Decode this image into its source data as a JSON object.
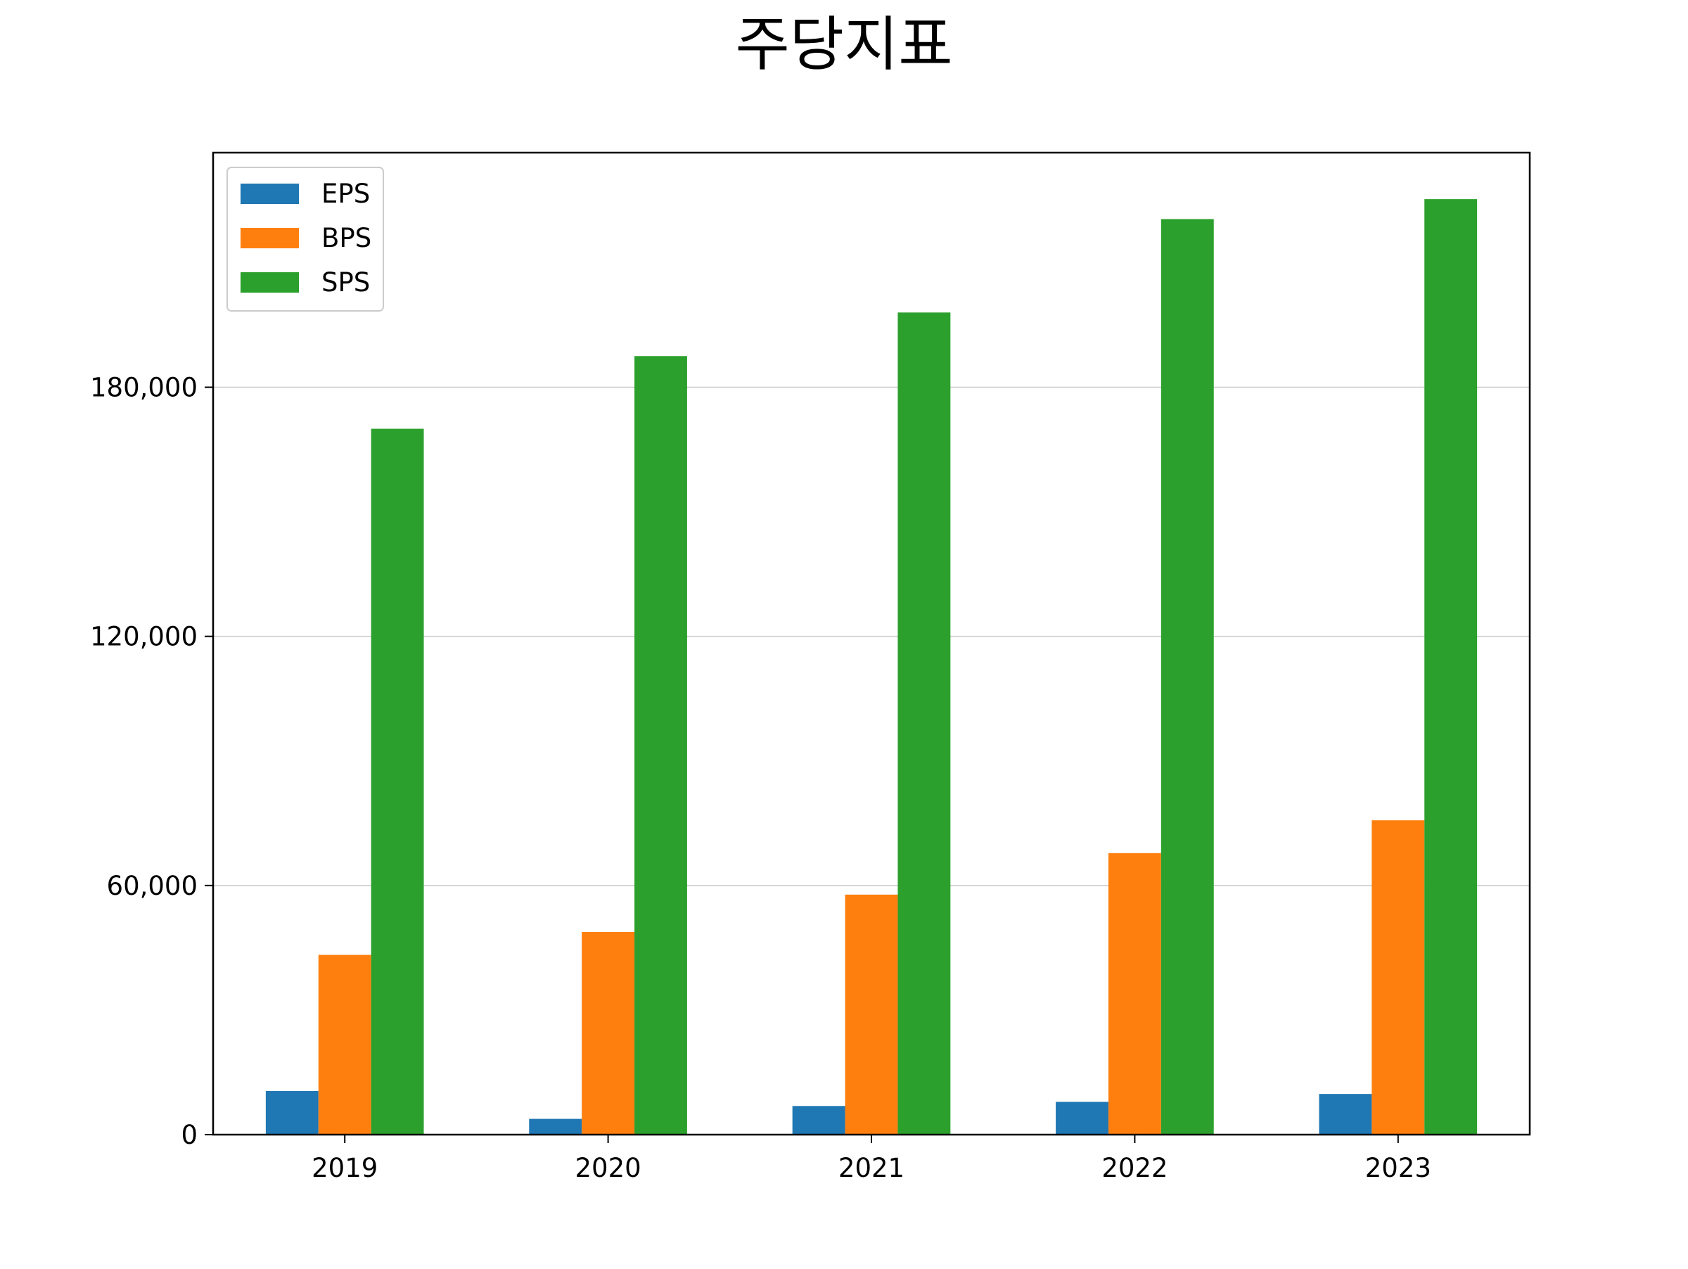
{
  "chart_data": {
    "type": "bar",
    "title": "주당지표",
    "xlabel": "",
    "ylabel": "",
    "categories": [
      "2019",
      "2020",
      "2021",
      "2022",
      "2023"
    ],
    "series": [
      {
        "name": "EPS",
        "color": "#1f77b4",
        "values": [
          10500,
          3800,
          6900,
          7900,
          9800
        ]
      },
      {
        "name": "BPS",
        "color": "#ff7f0e",
        "values": [
          43300,
          48800,
          57800,
          67800,
          75700
        ]
      },
      {
        "name": "SPS",
        "color": "#2ca02c",
        "values": [
          170000,
          187500,
          198000,
          220500,
          225300
        ]
      }
    ],
    "ylim": [
      0,
      236500
    ],
    "yticks": [
      0,
      60000,
      120000,
      180000
    ],
    "ytick_labels": [
      "0",
      "60,000",
      "120,000",
      "180,000"
    ],
    "grid": "y",
    "legend_position": "top-left"
  }
}
